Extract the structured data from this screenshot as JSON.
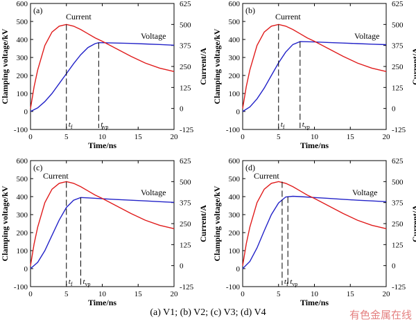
{
  "caption": "(a) V1; (b) V2; (c) V3; (d) V4",
  "watermark": "有色金属在线",
  "colors": {
    "voltage": "#2222c8",
    "current": "#e01b1b"
  },
  "chart_data": [
    {
      "type": "line",
      "panel_label": "(a)",
      "xlabel": "Time/ns",
      "ylabel_left": "Clamping voltage/kV",
      "ylabel_right": "Current/A",
      "xlim": [
        0,
        20
      ],
      "ylim_left": [
        -100,
        600
      ],
      "ylim_right": [
        -125,
        625
      ],
      "xticks": [
        "0",
        "5",
        "10",
        "15",
        "20"
      ],
      "yticks_left": [
        "-100",
        "0",
        "100",
        "200",
        "300",
        "400",
        "500",
        "600"
      ],
      "yticks_right": [
        "-125",
        "0",
        "125",
        "250",
        "375",
        "500",
        "625"
      ],
      "markers": {
        "tf_label": "f",
        "tf": 5.0,
        "tvp_label": "vp",
        "tvp": 9.5
      },
      "series": [
        {
          "name": "Voltage",
          "axis": "left",
          "x": [
            0,
            1,
            2,
            3,
            4,
            5,
            6,
            7,
            8,
            9,
            9.5,
            10,
            12,
            14,
            16,
            18,
            20
          ],
          "y": [
            0,
            20,
            55,
            100,
            155,
            210,
            265,
            315,
            355,
            377,
            382,
            382,
            380,
            378,
            375,
            372,
            368
          ]
        },
        {
          "name": "Current",
          "axis": "right",
          "x": [
            0,
            0.5,
            1,
            2,
            3,
            4,
            5,
            6,
            7,
            8,
            9,
            10,
            12,
            14,
            16,
            18,
            20
          ],
          "y": [
            0,
            130,
            230,
            375,
            455,
            490,
            500,
            490,
            470,
            445,
            420,
            400,
            355,
            310,
            270,
            240,
            220
          ]
        }
      ]
    },
    {
      "type": "line",
      "panel_label": "(b)",
      "xlabel": "Time/ns",
      "ylabel_left": "Clamping voltage/kV",
      "ylabel_right": "Current/A",
      "xlim": [
        0,
        20
      ],
      "ylim_left": [
        -100,
        600
      ],
      "ylim_right": [
        -125,
        625
      ],
      "xticks": [
        "0",
        "5",
        "10",
        "15",
        "20"
      ],
      "yticks_left": [
        "-100",
        "0",
        "100",
        "200",
        "300",
        "400",
        "500",
        "600"
      ],
      "yticks_right": [
        "-125",
        "0",
        "125",
        "250",
        "375",
        "500",
        "625"
      ],
      "markers": {
        "tf_label": "f",
        "tf": 5.0,
        "tvp_label": "vp",
        "tvp": 8.0
      },
      "series": [
        {
          "name": "Voltage",
          "axis": "left",
          "x": [
            0,
            1,
            2,
            3,
            4,
            5,
            6,
            7,
            8,
            10,
            12,
            14,
            16,
            18,
            20
          ],
          "y": [
            0,
            25,
            70,
            130,
            200,
            270,
            330,
            372,
            388,
            386,
            383,
            380,
            377,
            374,
            371
          ]
        },
        {
          "name": "Current",
          "axis": "right",
          "x": [
            0,
            0.5,
            1,
            2,
            3,
            4,
            5,
            6,
            7,
            8,
            9,
            10,
            12,
            14,
            16,
            18,
            20
          ],
          "y": [
            0,
            130,
            230,
            375,
            455,
            490,
            500,
            490,
            470,
            445,
            420,
            400,
            355,
            310,
            270,
            240,
            220
          ]
        }
      ]
    },
    {
      "type": "line",
      "panel_label": "(c)",
      "xlabel": "Time/ns",
      "ylabel_left": "Clamping voltage/kV",
      "ylabel_right": "Current/A",
      "xlim": [
        0,
        20
      ],
      "ylim_left": [
        -100,
        600
      ],
      "ylim_right": [
        -125,
        625
      ],
      "xticks": [
        "0",
        "5",
        "10",
        "15",
        "20"
      ],
      "yticks_left": [
        "-100",
        "0",
        "100",
        "200",
        "300",
        "400",
        "500",
        "600"
      ],
      "yticks_right": [
        "-125",
        "0",
        "125",
        "250",
        "375",
        "500",
        "625"
      ],
      "markers": {
        "tf_label": "f",
        "tf": 5.0,
        "tvp_label": "vp",
        "tvp": 7.0
      },
      "series": [
        {
          "name": "Voltage",
          "axis": "left",
          "x": [
            0,
            1,
            2,
            3,
            4,
            5,
            6,
            7,
            8,
            10,
            12,
            14,
            16,
            18,
            20
          ],
          "y": [
            0,
            35,
            100,
            185,
            270,
            340,
            380,
            395,
            393,
            388,
            384,
            380,
            376,
            372,
            368
          ]
        },
        {
          "name": "Current",
          "axis": "right",
          "x": [
            0,
            0.5,
            1,
            2,
            3,
            4,
            5,
            6,
            7,
            8,
            9,
            10,
            12,
            14,
            16,
            18,
            20
          ],
          "y": [
            0,
            130,
            230,
            375,
            455,
            490,
            500,
            490,
            470,
            445,
            420,
            400,
            355,
            310,
            270,
            240,
            220
          ]
        }
      ]
    },
    {
      "type": "line",
      "panel_label": "(d)",
      "xlabel": "Time/ns",
      "ylabel_left": "Clamping voltage/kV",
      "ylabel_right": "Current/A",
      "xlim": [
        0,
        20
      ],
      "ylim_left": [
        -100,
        600
      ],
      "ylim_right": [
        -125,
        625
      ],
      "xticks": [
        "0",
        "5",
        "10",
        "15",
        "20"
      ],
      "yticks_left": [
        "-100",
        "0",
        "100",
        "200",
        "300",
        "400",
        "500",
        "600"
      ],
      "yticks_right": [
        "-125",
        "0",
        "125",
        "250",
        "375",
        "500",
        "625"
      ],
      "markers": {
        "tf_label": "f",
        "tf": 5.5,
        "tvp_label": "vp",
        "tvp": 6.3
      },
      "series": [
        {
          "name": "Voltage",
          "axis": "left",
          "x": [
            0,
            1,
            2,
            3,
            4,
            5,
            6,
            7,
            8,
            10,
            12,
            14,
            16,
            18,
            20
          ],
          "y": [
            0,
            40,
            115,
            210,
            300,
            365,
            398,
            402,
            400,
            395,
            390,
            385,
            380,
            376,
            372
          ]
        },
        {
          "name": "Current",
          "axis": "right",
          "x": [
            0,
            0.5,
            1,
            2,
            3,
            4,
            5,
            6,
            7,
            8,
            9,
            10,
            12,
            14,
            16,
            18,
            20
          ],
          "y": [
            0,
            130,
            230,
            375,
            455,
            490,
            500,
            490,
            470,
            445,
            420,
            400,
            355,
            310,
            270,
            240,
            220
          ]
        }
      ]
    }
  ],
  "annotations": [
    {
      "current": "Current",
      "voltage": "Voltage"
    },
    {
      "current": "Current",
      "voltage": "Voltage"
    },
    {
      "current": "Current",
      "voltage": "Voltage"
    },
    {
      "current": "Current",
      "voltage": "Voltage"
    }
  ]
}
